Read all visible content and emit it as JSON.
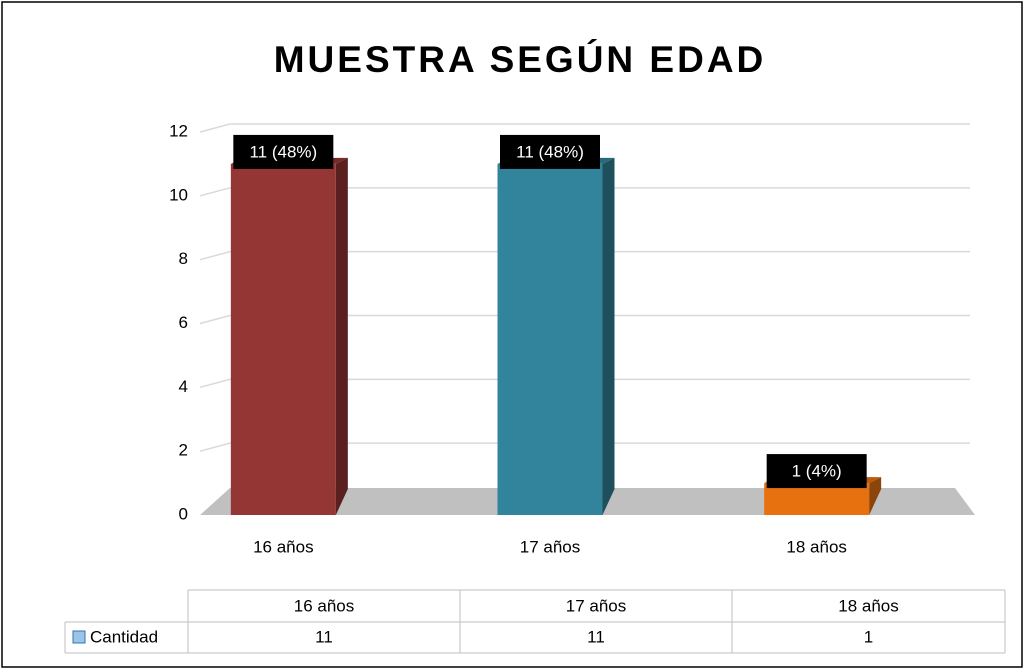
{
  "chart_data": {
    "type": "bar",
    "title": "MUESTRA SEGÚN EDAD",
    "categories": [
      "16 años",
      "17 años",
      "18 años"
    ],
    "series": [
      {
        "name": "Cantidad",
        "colors": [
          "#943634",
          "#31849b",
          "#e8710f"
        ],
        "values": [
          11,
          11,
          1
        ],
        "value_labels": [
          "11 (48%)",
          "11 (48%)",
          "1 (4%)"
        ]
      }
    ],
    "ylim": [
      0,
      12
    ],
    "yticks": [
      0,
      2,
      4,
      6,
      8,
      10,
      12
    ],
    "grid": true,
    "data_table": true
  }
}
